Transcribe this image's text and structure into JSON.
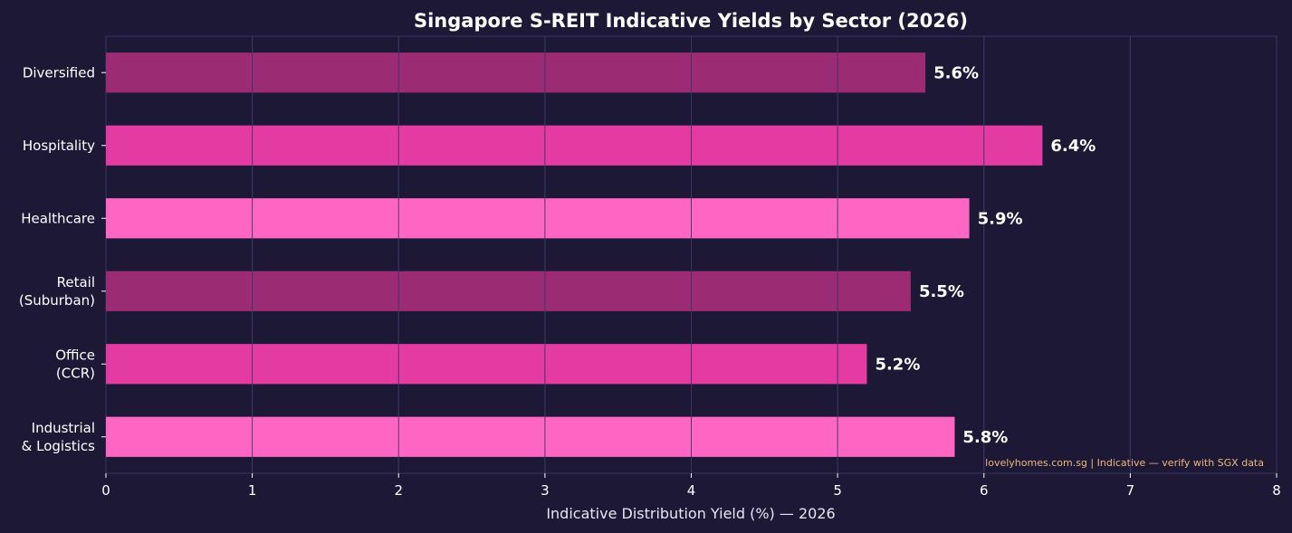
{
  "chart_data": {
    "type": "bar",
    "orientation": "horizontal",
    "title": "Singapore S-REIT Indicative Yields by Sector (2026)",
    "xlabel": "Indicative Distribution Yield (%) — 2026",
    "ylabel": "",
    "xlim": [
      0,
      8
    ],
    "xticks": [
      "0",
      "1",
      "2",
      "3",
      "4",
      "5",
      "6",
      "7",
      "8"
    ],
    "grid": true,
    "categories": [
      [
        "Industrial",
        "& Logistics"
      ],
      [
        "Office",
        "(CCR)"
      ],
      [
        "Retail",
        "(Suburban)"
      ],
      [
        "Healthcare"
      ],
      [
        "Hospitality"
      ],
      [
        "Diversified"
      ]
    ],
    "values": [
      5.8,
      5.2,
      5.5,
      5.9,
      6.4,
      5.6
    ],
    "value_labels": [
      "5.8%",
      "5.2%",
      "5.5%",
      "5.9%",
      "6.4%",
      "5.6%"
    ],
    "bar_colors": [
      "#ff66c4",
      "#e43ba3",
      "#9b2b73",
      "#ff66c4",
      "#e43ba3",
      "#9b2b73"
    ],
    "annotation": "lovelyhomes.com.sg | Indicative — verify with SGX data"
  },
  "colors": {
    "background": "#1c1836",
    "grid": "#3a3560",
    "axis_text": "#ffffff",
    "annotation": "#f0b878"
  }
}
